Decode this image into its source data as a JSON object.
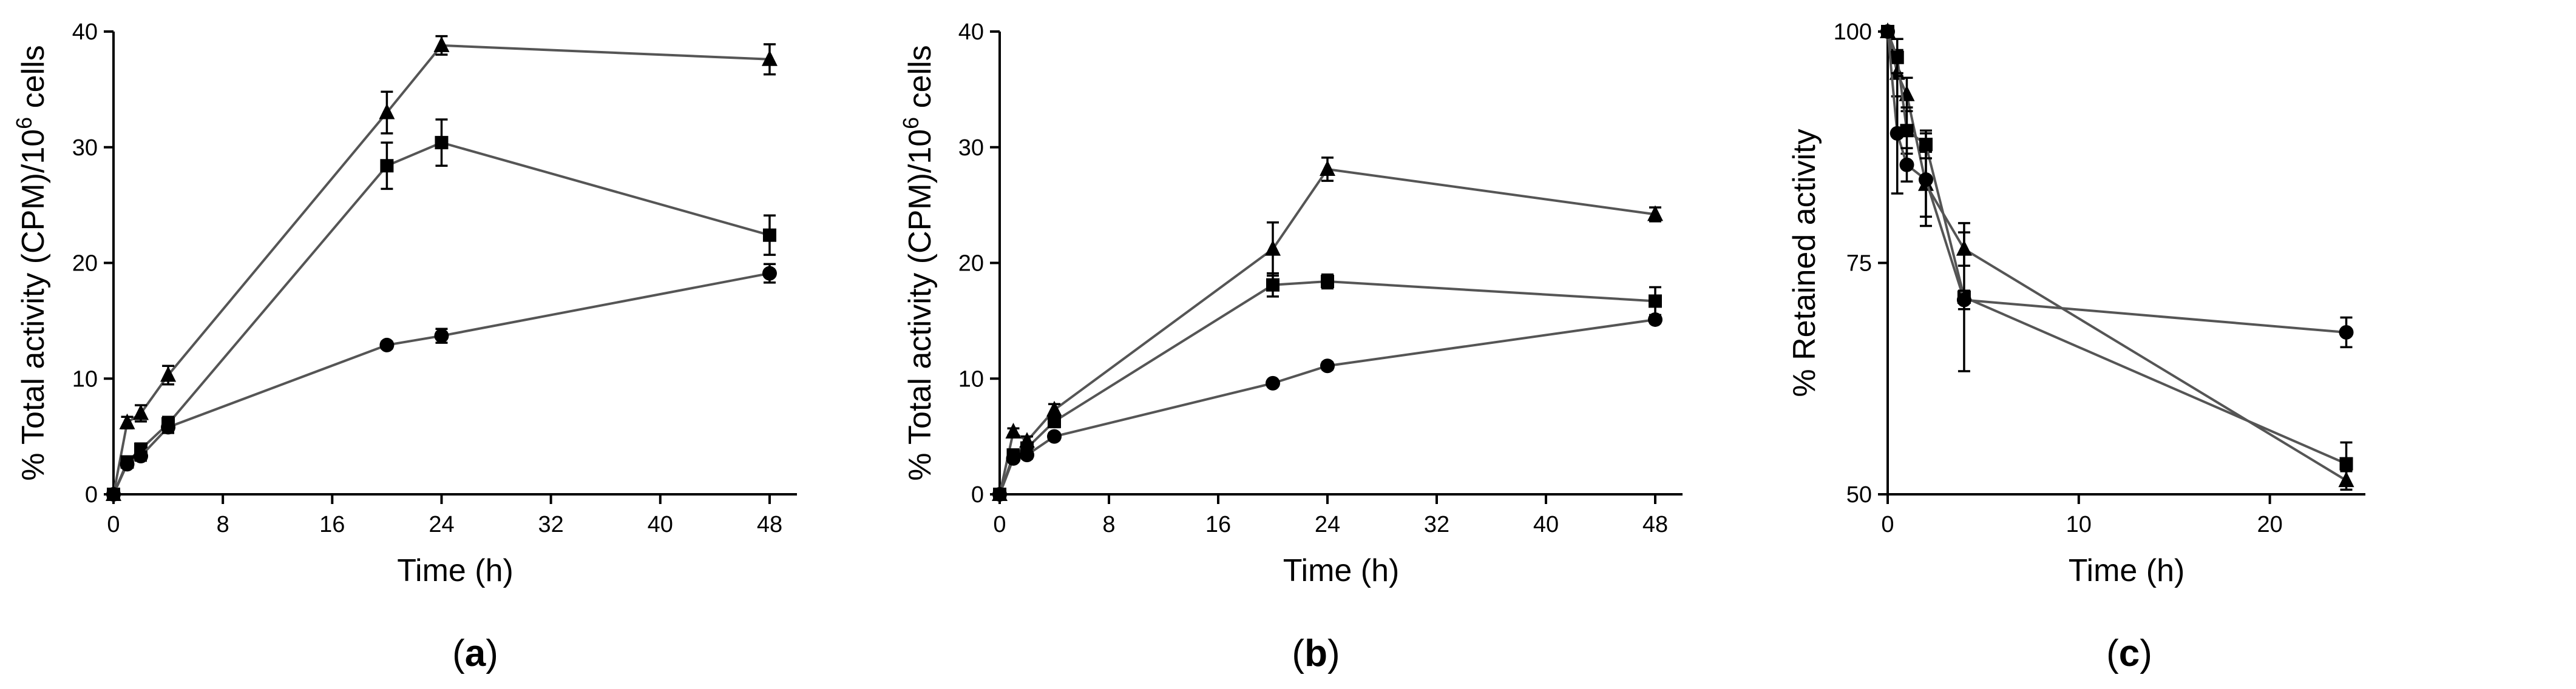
{
  "chart_data": [
    {
      "type": "line",
      "panel": "a",
      "panel_label": "a",
      "xlabel": "Time (h)",
      "ylabel_main": "% Total activity (CPM)/10",
      "ylabel_sup": "6",
      "ylabel_tail": " cells",
      "xlim": [
        0,
        50
      ],
      "ylim": [
        0,
        40
      ],
      "xticks": [
        0,
        8,
        16,
        24,
        32,
        40,
        48
      ],
      "yticks": [
        0,
        10,
        20,
        30,
        40
      ],
      "series": [
        {
          "name": "triangle",
          "marker": "triangle",
          "x": [
            0,
            1,
            2,
            4,
            20,
            24,
            48
          ],
          "y": [
            0,
            6.2,
            7.0,
            10.3,
            33.0,
            38.8,
            37.6
          ],
          "err": [
            0,
            0.5,
            0.7,
            0.8,
            1.8,
            0.8,
            1.3
          ]
        },
        {
          "name": "square",
          "marker": "square",
          "x": [
            0,
            1,
            2,
            4,
            20,
            24,
            48
          ],
          "y": [
            0,
            2.8,
            3.9,
            6.1,
            28.4,
            30.4,
            22.4
          ],
          "err": [
            0,
            0.4,
            0.5,
            0.6,
            2.0,
            2.0,
            1.7
          ]
        },
        {
          "name": "circle",
          "marker": "circle",
          "x": [
            0,
            1,
            2,
            4,
            20,
            24,
            48
          ],
          "y": [
            0,
            2.6,
            3.3,
            5.8,
            12.9,
            13.7,
            19.1
          ],
          "err": [
            0,
            0.3,
            0.4,
            0.5,
            0.3,
            0.6,
            0.8
          ]
        }
      ]
    },
    {
      "type": "line",
      "panel": "b",
      "panel_label": "b",
      "xlabel": "Time (h)",
      "ylabel_main": "% Total activity (CPM)/10",
      "ylabel_sup": "6",
      "ylabel_tail": " cells",
      "xlim": [
        0,
        50
      ],
      "ylim": [
        0,
        40
      ],
      "xticks": [
        0,
        8,
        16,
        24,
        32,
        40,
        48
      ],
      "yticks": [
        0,
        10,
        20,
        30,
        40
      ],
      "series": [
        {
          "name": "triangle",
          "marker": "triangle",
          "x": [
            0,
            1,
            2,
            4,
            20,
            24,
            48
          ],
          "y": [
            0,
            5.4,
            4.6,
            7.3,
            21.2,
            28.1,
            24.2
          ],
          "err": [
            0,
            0.3,
            0.4,
            0.5,
            2.3,
            1.0,
            0.6
          ]
        },
        {
          "name": "square",
          "marker": "square",
          "x": [
            0,
            1,
            2,
            4,
            20,
            24,
            48
          ],
          "y": [
            0,
            3.4,
            4.0,
            6.3,
            18.1,
            18.4,
            16.7
          ],
          "err": [
            0,
            0.3,
            0.4,
            0.5,
            1.0,
            0.6,
            1.2
          ]
        },
        {
          "name": "circle",
          "marker": "circle",
          "x": [
            0,
            1,
            2,
            4,
            20,
            24,
            48
          ],
          "y": [
            0,
            3.1,
            3.4,
            5.0,
            9.6,
            11.1,
            15.1
          ],
          "err": [
            0,
            0.2,
            0.3,
            0.3,
            0.2,
            0.3,
            0.3
          ]
        }
      ]
    },
    {
      "type": "line",
      "panel": "c",
      "panel_label": "c",
      "xlabel": "Time (h)",
      "ylabel_main": "% Retained activity",
      "ylabel_sup": "",
      "ylabel_tail": "",
      "xlim": [
        0,
        25
      ],
      "ylim": [
        50,
        100
      ],
      "xticks": [
        0,
        10,
        20
      ],
      "yticks": [
        50,
        75,
        100
      ],
      "series": [
        {
          "name": "triangle",
          "marker": "triangle",
          "x": [
            0,
            0.5,
            1,
            2,
            4,
            24
          ],
          "y": [
            100,
            95.5,
            93.2,
            83.5,
            76.5,
            51.5
          ],
          "err": [
            0,
            2.5,
            1.8,
            3.5,
            1.8,
            1.0
          ]
        },
        {
          "name": "square",
          "marker": "square",
          "x": [
            0,
            0.5,
            1,
            2,
            4,
            24
          ],
          "y": [
            100,
            97.2,
            89.3,
            87.8,
            71.3,
            53.3
          ],
          "err": [
            0,
            2.0,
            2.5,
            1.5,
            8.0,
            2.3
          ]
        },
        {
          "name": "circle",
          "marker": "circle",
          "x": [
            0,
            0.5,
            1,
            2,
            4,
            24
          ],
          "y": [
            100,
            89.0,
            85.6,
            84.0,
            71.0,
            67.5
          ],
          "err": [
            0,
            6.5,
            1.8,
            5.0,
            1.0,
            1.6
          ]
        }
      ]
    }
  ]
}
